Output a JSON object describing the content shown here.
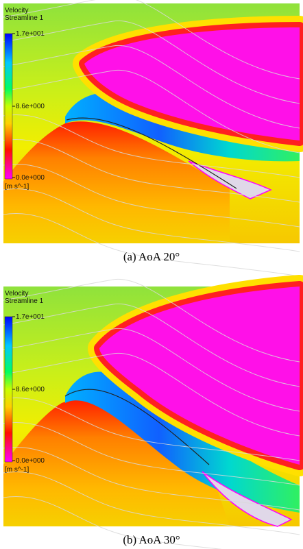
{
  "panels": [
    {
      "legend": {
        "title": "Velocity",
        "subtitle": "Streamline 1",
        "max": "1.7e+001",
        "mid": "8.6e+000",
        "min": "0.0e+000",
        "unit": "[m s^-1]"
      },
      "caption": "(a)  AoA  20°"
    },
    {
      "legend": {
        "title": "Velocity",
        "subtitle": "Streamline 1",
        "max": "1.7e+001",
        "mid": "8.6e+000",
        "min": "0.0e+000",
        "unit": "[m s^-1]"
      },
      "caption": "(b)  AoA  30°"
    }
  ]
}
